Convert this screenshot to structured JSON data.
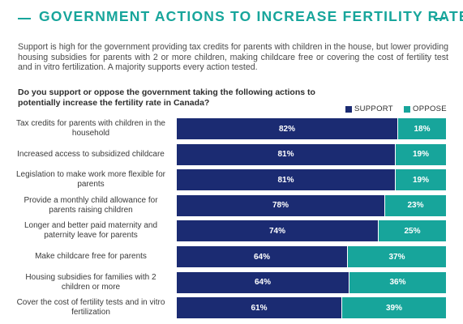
{
  "title": "GOVERNMENT ACTIONS TO INCREASE FERTILITY RATES",
  "intro": "Support is high for the government providing tax credits for parents with children in the house, but lower providing housing subsidies for parents with 2 or more children, making childcare free or covering the cost of fertility test and in vitro fertilization. A majority supports every action tested.",
  "question": "Do you support or oppose the government taking the following actions to potentially increase the fertility rate in Canada?",
  "colors": {
    "support": "#1b2b72",
    "oppose": "#17a59b",
    "title": "#17a59b"
  },
  "chart_data": {
    "type": "bar",
    "orientation": "horizontal",
    "stacked": true,
    "legend_position": "top-right",
    "categories": [
      "Tax credits for parents with children in the household",
      "Increased access to subsidized childcare",
      "Legislation to make work more flexible for parents",
      "Provide a monthly child allowance for parents raising children",
      "Longer and better paid maternity and paternity leave for parents",
      "Make childcare free for parents",
      "Housing subsidies for families with 2 children or more",
      "Cover the cost of fertility tests and in vitro fertilization"
    ],
    "series": [
      {
        "name": "SUPPORT",
        "values": [
          82,
          81,
          81,
          78,
          74,
          64,
          64,
          61
        ]
      },
      {
        "name": "OPPOSE",
        "values": [
          18,
          19,
          19,
          23,
          25,
          37,
          36,
          39
        ]
      }
    ],
    "value_suffix": "%"
  }
}
